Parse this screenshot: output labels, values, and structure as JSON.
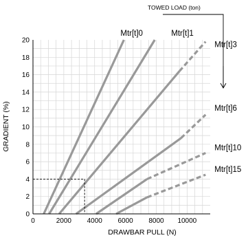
{
  "chart_data": {
    "type": "line",
    "xlabel": "DRAWBAR PULL (N)",
    "ylabel": "GRADIENT (%)",
    "xlim": [
      0,
      11500
    ],
    "ylim": [
      0,
      20
    ],
    "x_ticks": [
      0,
      2000,
      4000,
      6000,
      8000,
      10000
    ],
    "y_ticks": [
      0,
      2,
      4,
      6,
      8,
      10,
      12,
      14,
      16,
      18,
      20
    ],
    "grid": true,
    "legend_title": "TOWED LOAD (ton)",
    "series": [
      {
        "name": "Mtr[t]0",
        "points": [
          [
            700,
            0
          ],
          [
            5900,
            20
          ]
        ],
        "dashed_from": null
      },
      {
        "name": "Mtr[t]1",
        "points": [
          [
            1050,
            0
          ],
          [
            7900,
            20
          ]
        ],
        "dashed_from": null
      },
      {
        "name": "Mtr[t]3",
        "points": [
          [
            1700,
            0
          ],
          [
            9500,
            16.4
          ],
          [
            11200,
            19.8
          ]
        ],
        "dashed_from": 1
      },
      {
        "name": "Mtr[t]6",
        "points": [
          [
            2800,
            0
          ],
          [
            9600,
            8.7
          ],
          [
            11200,
            11.4
          ]
        ],
        "dashed_from": 1
      },
      {
        "name": "Mtr[t]10",
        "points": [
          [
            4100,
            0
          ],
          [
            7400,
            4.0
          ],
          [
            11200,
            7.0
          ]
        ],
        "dashed_from": 1
      },
      {
        "name": "Mtr[t]15",
        "points": [
          [
            5400,
            0
          ],
          [
            7400,
            1.9
          ],
          [
            11200,
            4.5
          ]
        ],
        "dashed_from": 1
      }
    ],
    "reference": {
      "x": 3350,
      "y": 4
    }
  }
}
